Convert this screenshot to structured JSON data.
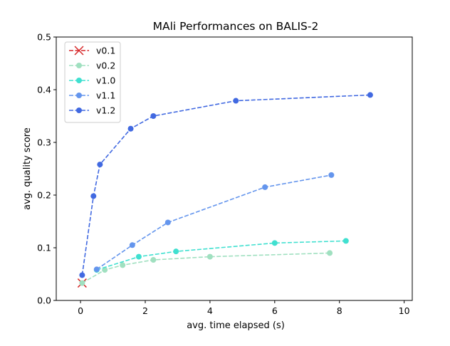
{
  "chart_data": {
    "type": "line",
    "title": "MAli Performances on BALIS-2",
    "xlabel": "avg. time elapsed (s)",
    "ylabel": "avg. quality score",
    "xlim": [
      -0.75,
      10.25
    ],
    "ylim": [
      0,
      0.5
    ],
    "xticks": [
      "0",
      "2",
      "4",
      "6",
      "8",
      "10"
    ],
    "yticks": [
      "0.0",
      "0.1",
      "0.2",
      "0.3",
      "0.4",
      "0.5"
    ],
    "grid": false,
    "legend_position": "top-left",
    "series": [
      {
        "name": "v0.1",
        "color": "#d62728",
        "marker": "x",
        "linestyle": "dashed",
        "x": [
          0.05
        ],
        "y": [
          0.033
        ]
      },
      {
        "name": "v0.2",
        "color": "#a0e0c0",
        "marker": "circle",
        "linestyle": "dashed",
        "x": [
          0.05,
          0.75,
          1.3,
          2.25,
          4.0,
          7.7
        ],
        "y": [
          0.033,
          0.058,
          0.067,
          0.077,
          0.083,
          0.09
        ]
      },
      {
        "name": "v1.0",
        "color": "#40e0d0",
        "marker": "circle",
        "linestyle": "dashed",
        "x": [
          0.5,
          1.8,
          2.95,
          6.0,
          8.2
        ],
        "y": [
          0.058,
          0.083,
          0.093,
          0.109,
          0.113
        ]
      },
      {
        "name": "v1.1",
        "color": "#6495ed",
        "marker": "circle",
        "linestyle": "dashed",
        "x": [
          0.5,
          1.6,
          2.7,
          5.7,
          7.75
        ],
        "y": [
          0.059,
          0.105,
          0.148,
          0.215,
          0.238
        ]
      },
      {
        "name": "v1.2",
        "color": "#4169e1",
        "marker": "circle",
        "linestyle": "dashed",
        "x": [
          0.05,
          0.4,
          0.6,
          1.55,
          2.25,
          4.8,
          8.95
        ],
        "y": [
          0.048,
          0.198,
          0.258,
          0.326,
          0.35,
          0.379,
          0.39
        ]
      }
    ]
  }
}
